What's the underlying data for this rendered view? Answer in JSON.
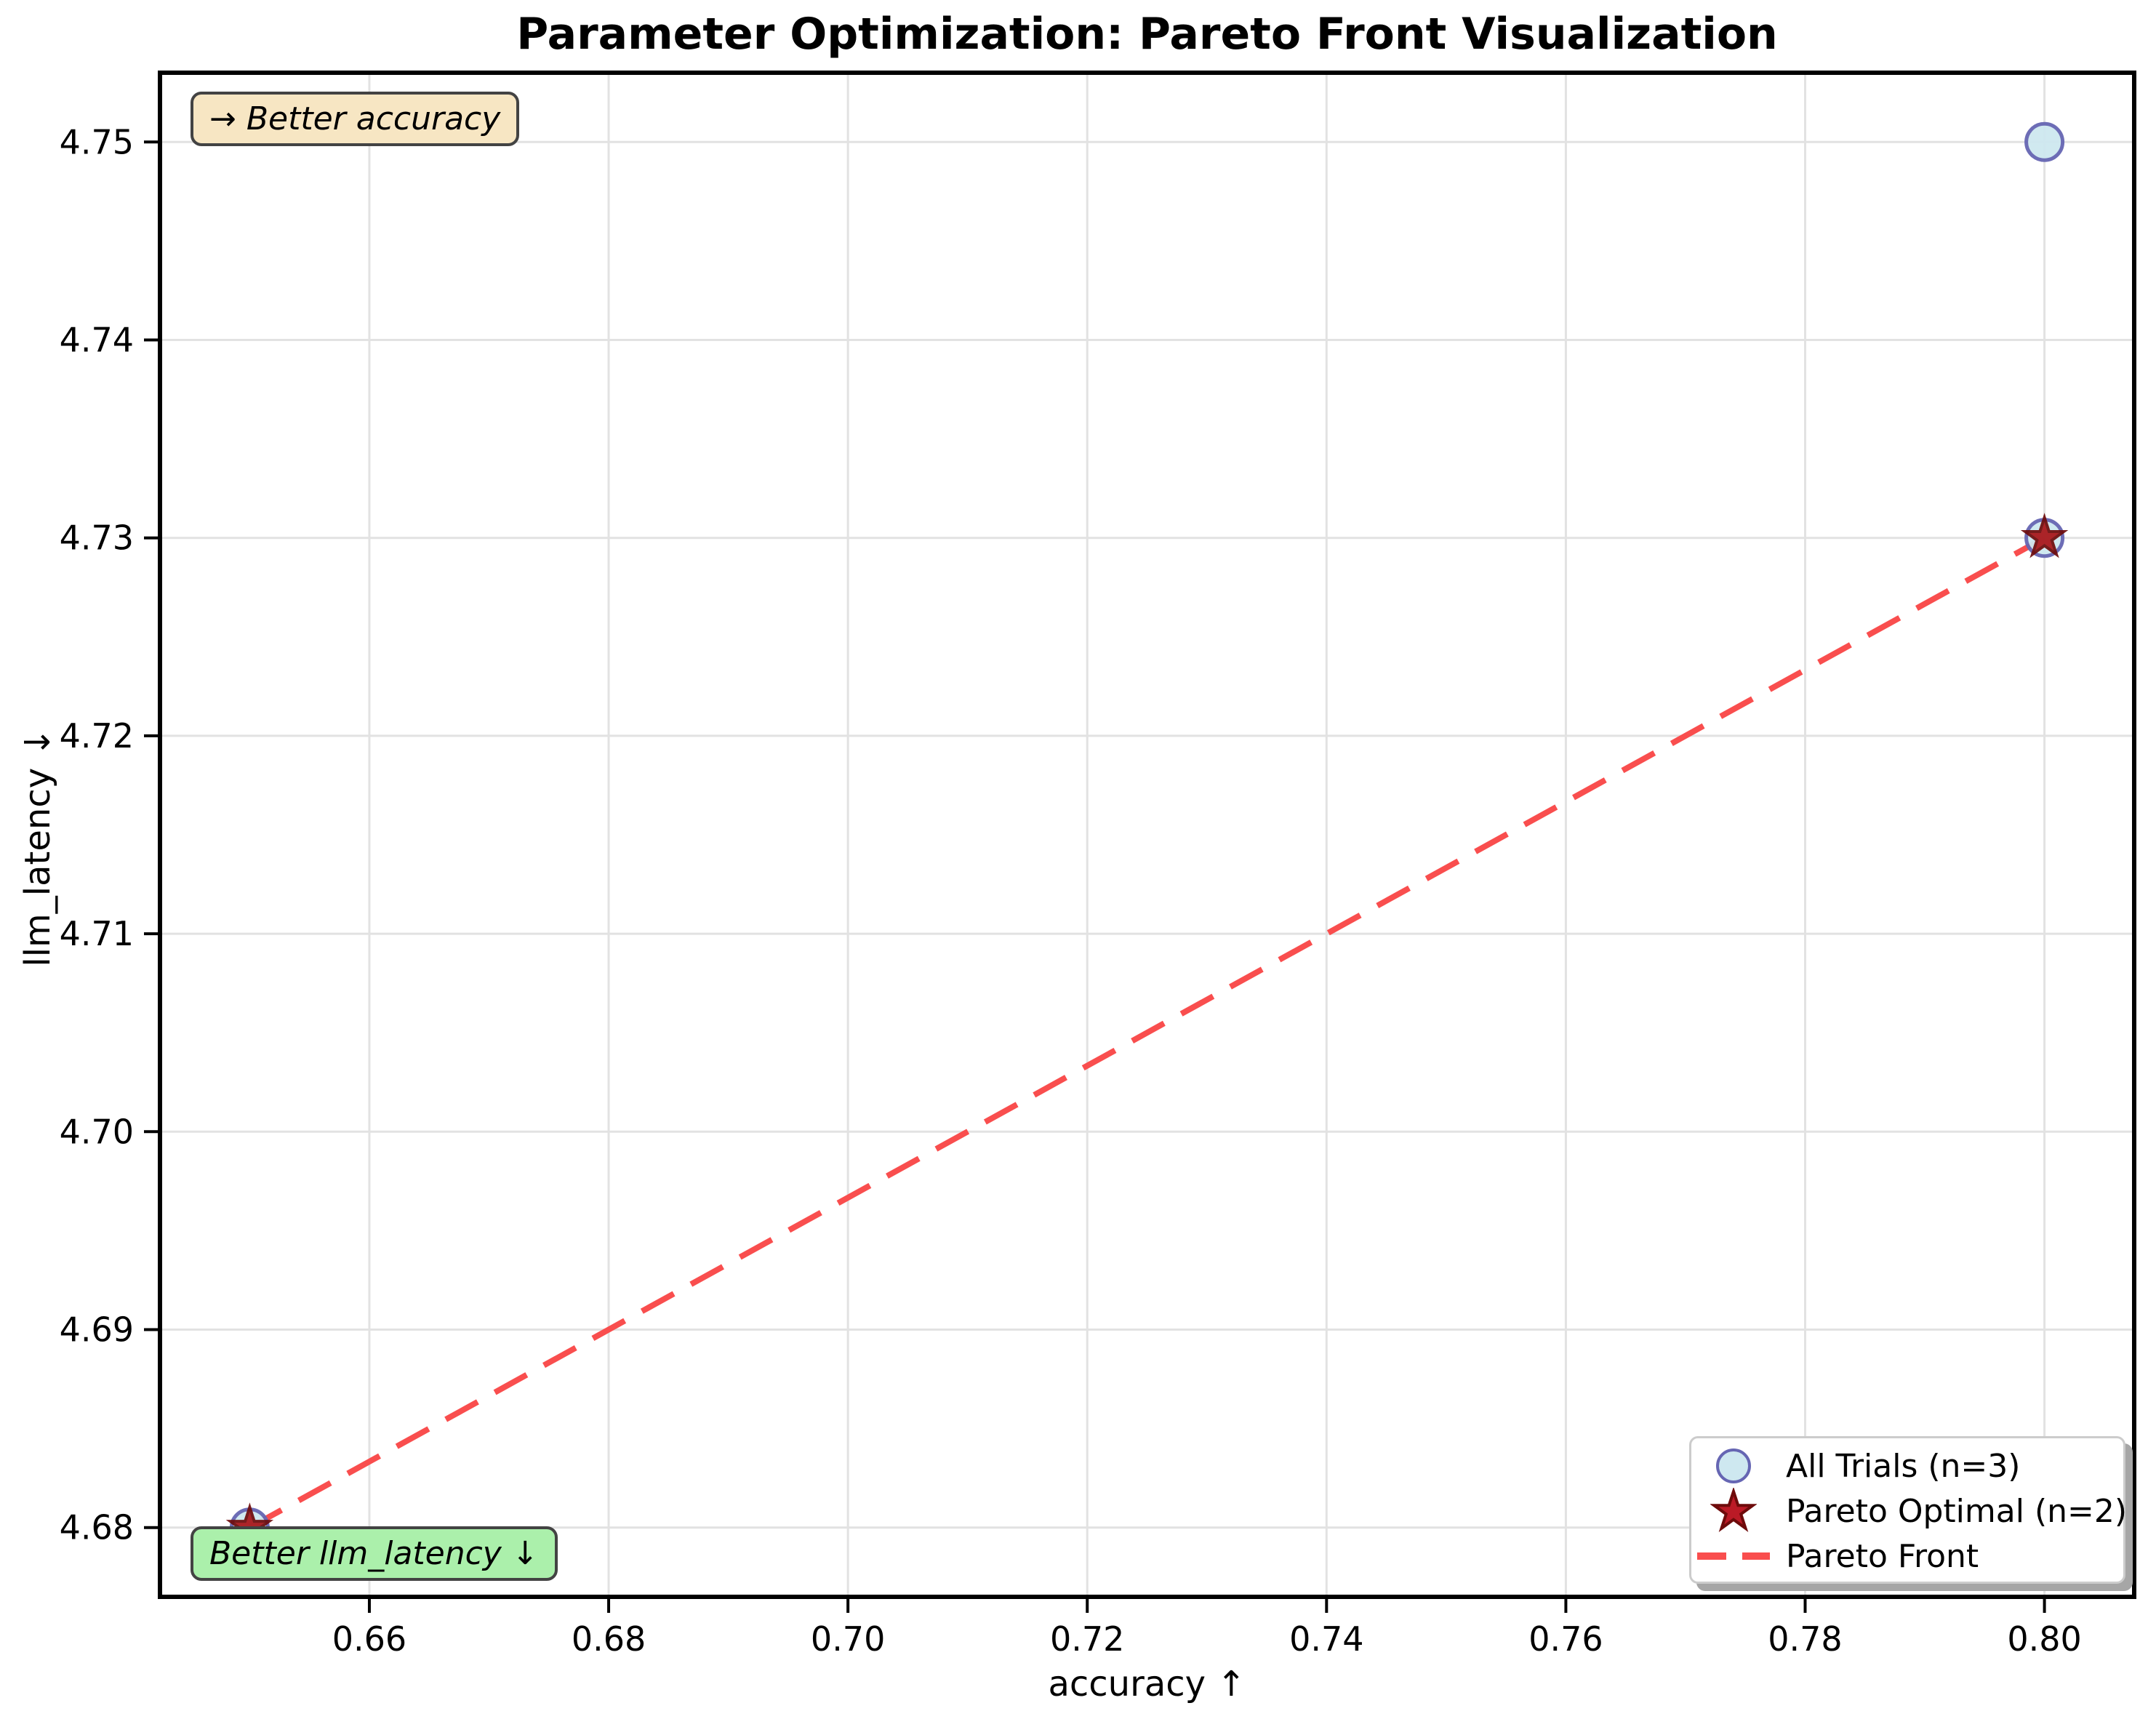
{
  "title": "Parameter Optimization: Pareto Front Visualization",
  "chart_data": {
    "type": "scatter",
    "title": "Parameter Optimization: Pareto Front Visualization",
    "xlabel": "accuracy ↑",
    "ylabel": "llm_latency ↓",
    "xlim": [
      0.6425,
      0.8075
    ],
    "ylim": [
      4.6765,
      4.7535
    ],
    "xticks": [
      0.66,
      0.68,
      0.7,
      0.72,
      0.74,
      0.76,
      0.78,
      0.8
    ],
    "xtick_labels": [
      "0.66",
      "0.68",
      "0.70",
      "0.72",
      "0.74",
      "0.76",
      "0.78",
      "0.80"
    ],
    "yticks": [
      4.68,
      4.69,
      4.7,
      4.71,
      4.72,
      4.73,
      4.74,
      4.75
    ],
    "ytick_labels": [
      "4.68",
      "4.69",
      "4.70",
      "4.71",
      "4.72",
      "4.73",
      "4.74",
      "4.75"
    ],
    "grid": true,
    "legend_position": "lower right",
    "series": [
      {
        "name": "All Trials (n=3)",
        "marker": "circle",
        "points": [
          [
            0.65,
            4.68
          ],
          [
            0.8,
            4.73
          ],
          [
            0.8,
            4.75
          ]
        ]
      },
      {
        "name": "Pareto Optimal (n=2)",
        "marker": "star",
        "points": [
          [
            0.65,
            4.68
          ],
          [
            0.8,
            4.73
          ]
        ]
      },
      {
        "name": "Pareto Front",
        "marker": "dashed-line",
        "points": [
          [
            0.65,
            4.68
          ],
          [
            0.8,
            4.73
          ]
        ]
      }
    ]
  },
  "annotations": {
    "better_accuracy": "→ Better accuracy",
    "better_latency": "Better llm_latency ↓"
  },
  "legend": {
    "items": [
      {
        "label": "All Trials (n=3)"
      },
      {
        "label": "Pareto Optimal (n=2)"
      },
      {
        "label": "Pareto Front"
      }
    ]
  },
  "colors": {
    "circle_fill": "#cee8f0",
    "circle_edge": "#6666b3",
    "star_fill": "#a81418",
    "star_edge": "#6e0b0b",
    "legend_star_fill": "#bb1a26",
    "front_line": "#f94e4e",
    "grid": "#e2e2e2",
    "frame": "#000000",
    "wheat_bg": "#f7e6c3",
    "green_bg": "#abf0ab",
    "box_border": "#434343",
    "legend_border": "#cccccc",
    "legend_shadow": "#a6a6a6"
  }
}
